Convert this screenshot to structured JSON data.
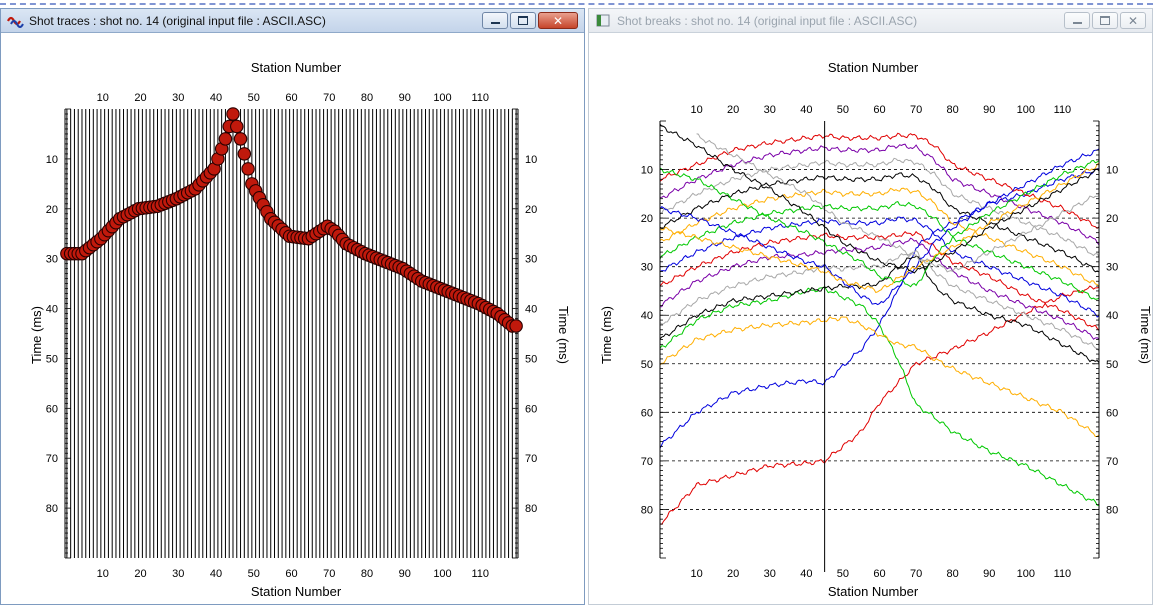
{
  "left_window": {
    "title": "Shot traces : shot no. 14 (original input file : ASCII.ASC)"
  },
  "right_window": {
    "title": "Shot breaks : shot no. 14 (original input file : ASCII.ASC)"
  },
  "window_controls": {
    "minimize": "minimize",
    "maximize": "maximize",
    "close": "close"
  },
  "colors": {
    "trace": "#000000",
    "pick_fill": "#c0190c",
    "pick_edge": "#2a0000",
    "break_series": [
      "#e00000",
      "#0000dd",
      "#00c800",
      "#ffae00",
      "#000000",
      "#a8a8a8",
      "#7a00a8"
    ]
  },
  "chart_data": [
    {
      "type": "scatter",
      "xlabel": "Station Number",
      "ylabel": "Time (ms)",
      "xlim": [
        0,
        120
      ],
      "ylim": [
        90,
        0
      ],
      "x_ticks": [
        10,
        20,
        30,
        40,
        50,
        60,
        70,
        80,
        90,
        100,
        110
      ],
      "y_ticks": [
        10,
        20,
        30,
        40,
        50,
        60,
        70,
        80
      ],
      "grid": false,
      "trace_stations": 120,
      "first_break_picks": {
        "x": [
          1,
          5,
          10,
          15,
          20,
          25,
          30,
          35,
          40,
          43,
          45,
          47,
          50,
          55,
          60,
          65,
          70,
          72,
          75,
          80,
          85,
          90,
          95,
          100,
          105,
          110,
          115,
          119
        ],
        "y": [
          29,
          29,
          26,
          22,
          20,
          19.5,
          18,
          16,
          12,
          6,
          1,
          6,
          15,
          22,
          25.5,
          26,
          23.5,
          24.5,
          27,
          29,
          30.5,
          32,
          34.5,
          36,
          37.5,
          39,
          41,
          43.5
        ]
      }
    },
    {
      "type": "line",
      "xlabel": "Station Number",
      "ylabel": "Time (ms)",
      "xlim": [
        0,
        120
      ],
      "ylim": [
        90,
        0
      ],
      "x_ticks": [
        10,
        20,
        30,
        40,
        50,
        60,
        70,
        80,
        90,
        100,
        110
      ],
      "y_ticks": [
        10,
        20,
        30,
        40,
        50,
        60,
        70,
        80
      ],
      "grid": "dashed-horizontal",
      "source_station": 45,
      "series": [
        {
          "x": [
            0,
            10,
            20,
            30,
            40,
            45,
            55,
            60,
            65,
            70,
            75,
            80,
            90,
            100,
            110,
            120
          ],
          "y": [
            83,
            75,
            73,
            71,
            70.5,
            70,
            64,
            58,
            54,
            50,
            48.5,
            47,
            43.5,
            39.5,
            36,
            34
          ]
        },
        {
          "x": [
            0,
            10,
            20,
            30,
            40,
            45,
            55,
            60,
            65,
            70,
            75,
            80,
            90,
            100,
            110,
            120
          ],
          "y": [
            67,
            60,
            56,
            54.5,
            53.5,
            54,
            47,
            42,
            35,
            26,
            23,
            21,
            17,
            15,
            12,
            10
          ]
        },
        {
          "x": [
            0,
            10,
            20,
            30,
            40,
            45,
            55,
            60,
            65,
            70,
            75,
            80,
            90,
            100,
            110,
            120
          ],
          "y": [
            47,
            41,
            38,
            37,
            35,
            34.5,
            38,
            42,
            49,
            58.5,
            61,
            64,
            68,
            71,
            75,
            79
          ]
        },
        {
          "x": [
            0,
            10,
            20,
            30,
            40,
            45,
            50,
            55,
            60,
            65,
            70,
            75,
            80,
            90,
            100,
            110,
            120
          ],
          "y": [
            50,
            45,
            43,
            42,
            41.5,
            41,
            40.5,
            42,
            44,
            46,
            46.5,
            49,
            51,
            54,
            57,
            60,
            65
          ]
        },
        {
          "x": [
            0,
            10,
            20,
            30,
            40,
            45,
            50,
            55,
            60,
            65,
            70,
            75,
            80,
            90,
            100,
            110,
            120
          ],
          "y": [
            45,
            40,
            37,
            36,
            35,
            34.5,
            34,
            34,
            33.5,
            30,
            27.5,
            34,
            37,
            40,
            42,
            46,
            50
          ]
        },
        {
          "x": [
            0,
            10,
            20,
            30,
            40,
            45,
            50,
            55,
            60,
            65,
            70,
            75,
            80,
            90,
            100,
            110,
            120
          ],
          "y": [
            42,
            37,
            34,
            32,
            31,
            30,
            30.5,
            30,
            30,
            28,
            27,
            31,
            34,
            37,
            40,
            43,
            47
          ]
        },
        {
          "x": [
            0,
            10,
            20,
            30,
            40,
            45,
            50,
            55,
            60,
            65,
            70,
            75,
            80,
            90,
            100,
            110,
            120
          ],
          "y": [
            38,
            33,
            30,
            28,
            27.5,
            27,
            26.5,
            26.5,
            26,
            25,
            24.5,
            28,
            31,
            35,
            38,
            41,
            45
          ]
        },
        {
          "x": [
            0,
            10,
            20,
            30,
            40,
            45,
            50,
            55,
            60,
            65,
            70,
            75,
            80,
            90,
            100,
            110,
            120
          ],
          "y": [
            34,
            30,
            27,
            25,
            24,
            23.5,
            24,
            24,
            24,
            23.5,
            23,
            26,
            29,
            32,
            36,
            39,
            43
          ]
        },
        {
          "x": [
            0,
            10,
            20,
            30,
            40,
            45,
            50,
            55,
            60,
            65,
            70,
            75,
            80,
            90,
            100,
            110,
            120
          ],
          "y": [
            31,
            27,
            24,
            22,
            21,
            20.5,
            21,
            21,
            21,
            20,
            20.5,
            23,
            27,
            30,
            33,
            36,
            40
          ]
        },
        {
          "x": [
            0,
            10,
            20,
            30,
            40,
            45,
            50,
            55,
            60,
            65,
            70,
            75,
            80,
            90,
            100,
            110,
            120
          ],
          "y": [
            28,
            24,
            21,
            19,
            18,
            17.5,
            18,
            18,
            18,
            17,
            17.5,
            20,
            24,
            27,
            30,
            33,
            37
          ]
        },
        {
          "x": [
            0,
            10,
            20,
            30,
            40,
            45,
            50,
            55,
            60,
            65,
            70,
            75,
            80,
            90,
            100,
            110,
            120
          ],
          "y": [
            25,
            21,
            18,
            16,
            15,
            14.5,
            15,
            15,
            15,
            14,
            14.5,
            17,
            21,
            24,
            27,
            30,
            34
          ]
        },
        {
          "x": [
            0,
            10,
            20,
            30,
            40,
            45,
            50,
            55,
            60,
            65,
            70,
            75,
            80,
            90,
            100,
            110,
            120
          ],
          "y": [
            22,
            18,
            15,
            13,
            12,
            11.5,
            12,
            12,
            12,
            11,
            11.5,
            14,
            18,
            21,
            24,
            27,
            31
          ]
        },
        {
          "x": [
            0,
            10,
            20,
            30,
            40,
            45,
            50,
            55,
            60,
            65,
            70,
            75,
            80,
            90,
            100,
            110,
            120
          ],
          "y": [
            19,
            15,
            12,
            10,
            9,
            8.5,
            9,
            9,
            9,
            8,
            8.5,
            11,
            15,
            18,
            21,
            24,
            28
          ]
        },
        {
          "x": [
            0,
            10,
            20,
            30,
            40,
            45,
            50,
            55,
            60,
            65,
            70,
            75,
            80,
            90,
            100,
            110,
            120
          ],
          "y": [
            16,
            12,
            9,
            7,
            6,
            5.5,
            6,
            6,
            6,
            5,
            5.5,
            8,
            12,
            15,
            18,
            21,
            25
          ]
        },
        {
          "x": [
            0,
            10,
            20,
            30,
            40,
            45,
            50,
            55,
            60,
            65,
            70,
            75,
            80,
            90,
            100,
            110,
            120
          ],
          "y": [
            12,
            9,
            6,
            4.5,
            3.5,
            3,
            3.5,
            3.5,
            3.5,
            3,
            3,
            5,
            9,
            12,
            15,
            18,
            22
          ]
        },
        {
          "x": [
            0,
            10,
            20,
            30,
            40,
            45,
            50,
            55,
            60,
            70,
            75,
            80,
            90,
            100,
            110,
            120
          ],
          "y": [
            18,
            20,
            23,
            26,
            29,
            30,
            33,
            36,
            38,
            30,
            25,
            22,
            17,
            13,
            9,
            6
          ]
        },
        {
          "x": [
            0,
            10,
            20,
            30,
            40,
            45,
            50,
            55,
            60,
            70,
            75,
            80,
            90,
            100,
            110,
            120
          ],
          "y": [
            10,
            12,
            16,
            20,
            23,
            25,
            27,
            29,
            32,
            34,
            28,
            24,
            19,
            15,
            11,
            8
          ]
        },
        {
          "x": [
            0,
            10,
            20,
            30,
            40,
            45,
            50,
            60,
            70,
            80,
            90,
            100,
            110,
            120
          ],
          "y": [
            22,
            24,
            26,
            28,
            30,
            31,
            33,
            35,
            30,
            26,
            21,
            17,
            13,
            9
          ]
        },
        {
          "x": [
            0,
            10,
            20,
            30,
            40,
            45,
            50,
            60,
            70,
            80,
            90,
            100,
            110,
            120
          ],
          "y": [
            1,
            5,
            10,
            14,
            19,
            22,
            25,
            29,
            31,
            27,
            22,
            18,
            14,
            10
          ]
        },
        {
          "x": [
            10,
            20,
            30,
            40,
            45,
            50,
            60,
            70,
            80,
            90,
            100,
            110,
            120
          ],
          "y": [
            3,
            7,
            11,
            15,
            18,
            21,
            24,
            28,
            31,
            27,
            23,
            19,
            15
          ]
        }
      ]
    }
  ]
}
